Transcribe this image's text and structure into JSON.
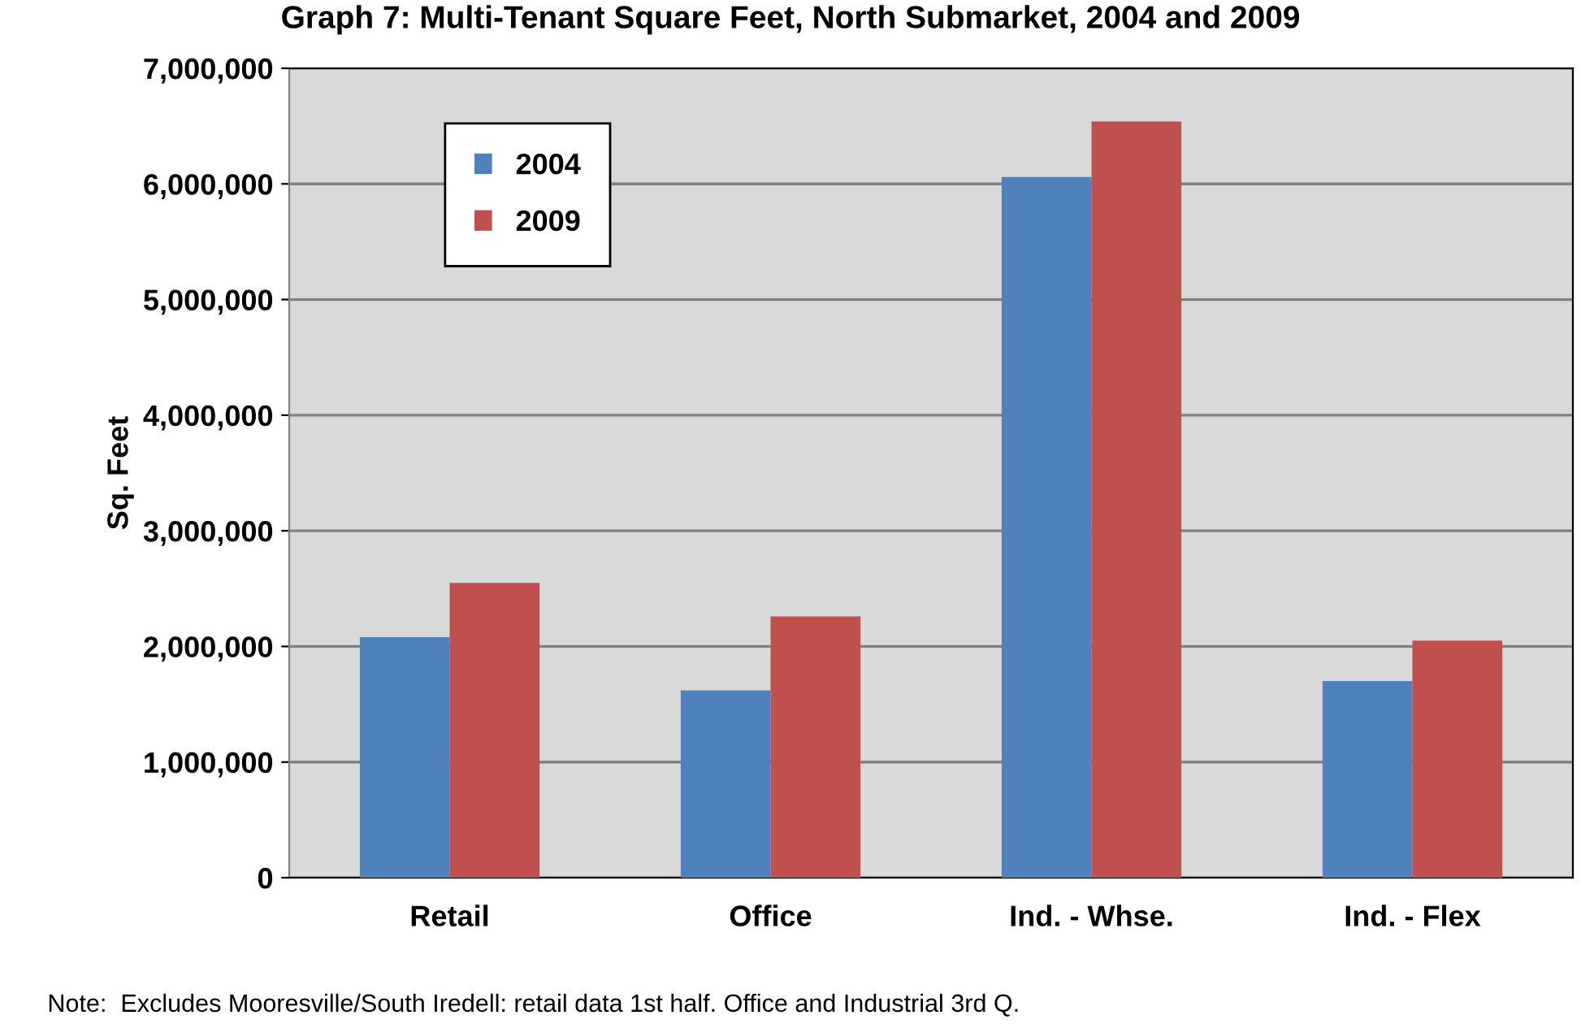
{
  "chart_data": {
    "type": "bar",
    "title": "Graph 7: Multi-Tenant Square Feet, North Submarket, 2004 and 2009",
    "ylabel": "Sq. Feet",
    "categories": [
      "Retail",
      "Office",
      "Ind. - Whse.",
      "Ind. - Flex"
    ],
    "series": [
      {
        "name": "2004",
        "color": "#4f81bd",
        "values": [
          2080000,
          1620000,
          6060000,
          1700000
        ]
      },
      {
        "name": "2009",
        "color": "#c0504d",
        "values": [
          2550000,
          2260000,
          6540000,
          2050000
        ]
      }
    ],
    "ylim": [
      0,
      7000000
    ],
    "yticks": [
      {
        "value": 0,
        "label": "0"
      },
      {
        "value": 1000000,
        "label": "1,000,000"
      },
      {
        "value": 2000000,
        "label": "2,000,000"
      },
      {
        "value": 3000000,
        "label": "3,000,000"
      },
      {
        "value": 4000000,
        "label": "4,000,000"
      },
      {
        "value": 5000000,
        "label": "5,000,000"
      },
      {
        "value": 6000000,
        "label": "6,000,000"
      },
      {
        "value": 7000000,
        "label": "7,000,000"
      }
    ],
    "grid": "y",
    "legend": "top left",
    "annotations": [
      "Note:  Excludes Mooresville/South Iredell: retail data 1st half. Office and Industrial 3rd Q."
    ]
  }
}
